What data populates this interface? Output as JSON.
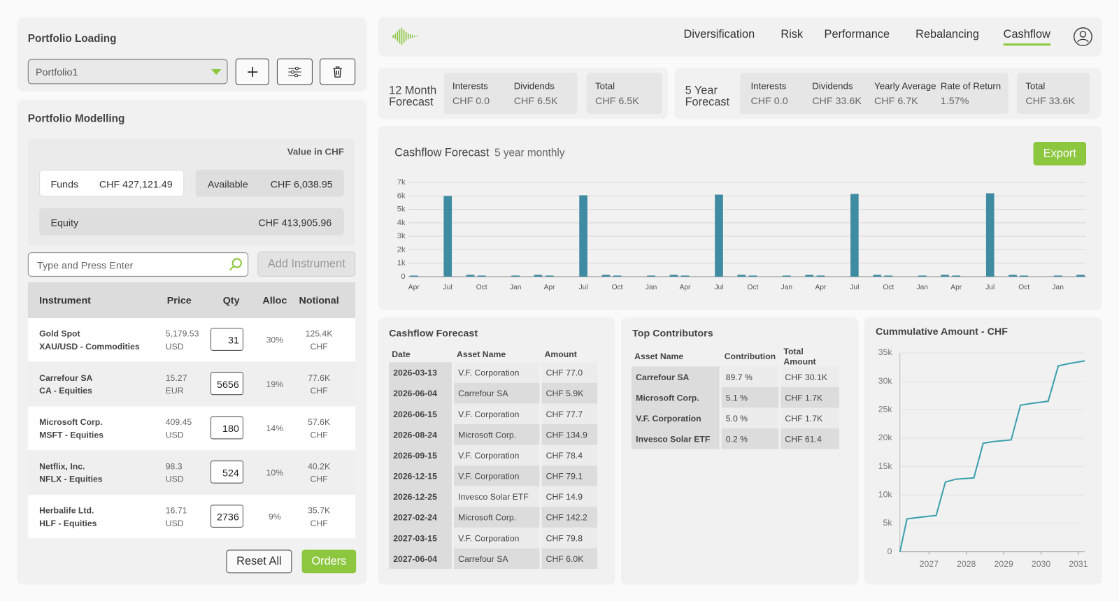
{
  "portfolio_loading": {
    "title": "Portfolio Loading",
    "selected": "Portfolio1"
  },
  "portfolio_modelling": {
    "title": "Portfolio Modelling",
    "value_caption": "Value in CHF",
    "funds": {
      "label": "Funds",
      "value": "CHF 427,121.49"
    },
    "available": {
      "label": "Available",
      "value": "CHF 6,038.95"
    },
    "equity": {
      "label": "Equity",
      "value": "CHF 413,905.96"
    },
    "search_placeholder": "Type and Press Enter",
    "add_button": "Add Instrument",
    "table": {
      "headers": [
        "Instrument",
        "Price",
        "Qty",
        "Alloc",
        "Notional"
      ],
      "rows": [
        {
          "name": "Gold Spot",
          "detail": "XAU/USD - Commodities",
          "price": "5,179.53",
          "currency": "USD",
          "qty": "31",
          "alloc": "30%",
          "notional": "125.4K",
          "notional_currency": "CHF"
        },
        {
          "name": "Carrefour SA",
          "detail": "CA - Equities",
          "price": "15.27",
          "currency": "EUR",
          "qty": "5656",
          "alloc": "19%",
          "notional": "77.6K",
          "notional_currency": "CHF"
        },
        {
          "name": "Microsoft Corp.",
          "detail": "MSFT - Equities",
          "price": "409.45",
          "currency": "USD",
          "qty": "180",
          "alloc": "14%",
          "notional": "57.6K",
          "notional_currency": "CHF"
        },
        {
          "name": "Netflix, Inc.",
          "detail": "NFLX - Equities",
          "price": "98.3",
          "currency": "USD",
          "qty": "524",
          "alloc": "10%",
          "notional": "40.2K",
          "notional_currency": "CHF"
        },
        {
          "name": "Herbalife Ltd.",
          "detail": "HLF - Equities",
          "price": "16.71",
          "currency": "USD",
          "qty": "2736",
          "alloc": "9%",
          "notional": "35.7K",
          "notional_currency": "CHF"
        }
      ]
    },
    "reset_button": "Reset All",
    "orders_button": "Orders"
  },
  "nav": {
    "items": [
      "Diversification",
      "Risk",
      "Performance",
      "Rebalancing",
      "Cashflow"
    ]
  },
  "forecast_12m": {
    "label": "12 Month Forecast",
    "fields": [
      {
        "label": "Interests",
        "value": "CHF 0.0"
      },
      {
        "label": "Dividends",
        "value": "CHF 6.5K"
      }
    ],
    "total": {
      "label": "Total",
      "value": "CHF 6.5K"
    }
  },
  "forecast_5y": {
    "label": "5 Year Forecast",
    "fields": [
      {
        "label": "Interests",
        "value": "CHF 0.0"
      },
      {
        "label": "Dividends",
        "value": "CHF 33.6K"
      },
      {
        "label": "Yearly Average",
        "value": "CHF 6.7K"
      },
      {
        "label": "Rate of Return",
        "value": "1.57%"
      }
    ],
    "total": {
      "label": "Total",
      "value": "CHF 33.6K"
    }
  },
  "export_button": "Export",
  "chart_data": [
    {
      "type": "bar",
      "title": "Cashflow Forecast",
      "subtitle": "5 year monthly",
      "categories": [
        "Apr",
        null,
        null,
        "Jul",
        null,
        null,
        "Oct",
        null,
        null,
        "Jan",
        null,
        null,
        "Apr",
        null,
        null,
        "Jul",
        null,
        null,
        "Oct",
        null,
        null,
        "Jan",
        null,
        null,
        "Apr",
        null,
        null,
        "Jul",
        null,
        null,
        "Oct",
        null,
        null,
        "Jan",
        null,
        null,
        "Apr",
        null,
        null,
        "Jul",
        null,
        null,
        "Oct",
        null,
        null,
        "Jan",
        null,
        null,
        "Apr",
        null,
        null,
        "Jul",
        null,
        null,
        "Oct",
        null,
        null,
        "Jan",
        null,
        null
      ],
      "values": [
        80,
        0,
        0,
        6000,
        0,
        140,
        80,
        0,
        0,
        80,
        0,
        140,
        80,
        0,
        0,
        6050,
        0,
        140,
        80,
        0,
        0,
        80,
        0,
        140,
        80,
        0,
        0,
        6100,
        0,
        140,
        80,
        0,
        0,
        80,
        0,
        140,
        80,
        0,
        0,
        6150,
        0,
        140,
        80,
        0,
        0,
        80,
        0,
        140,
        80,
        0,
        0,
        6200,
        0,
        140,
        80,
        0,
        0,
        80,
        0,
        140
      ],
      "color": "#3f8ba1",
      "ylim": [
        0,
        7000
      ],
      "yticks": [
        0,
        {
          "value": 1000,
          "label": "1k"
        },
        {
          "value": 2000,
          "label": "2k"
        },
        {
          "value": 3000,
          "label": "3k"
        },
        {
          "value": 4000,
          "label": "4k"
        },
        {
          "value": 5000,
          "label": "5k"
        },
        {
          "value": 6000,
          "label": "6k"
        },
        {
          "value": 7000,
          "label": "7k"
        }
      ],
      "grid": true
    },
    {
      "type": "line",
      "title": "Cummulative Amount - CHF",
      "x": [
        2026.22,
        2026.41,
        2026.77,
        2027.19,
        2027.44,
        2027.73,
        2028.2,
        2028.45,
        2028.72,
        2029.2,
        2029.45,
        2029.73,
        2030.19,
        2030.46,
        2030.73,
        2031.17
      ],
      "values": [
        0,
        5800,
        6100,
        6400,
        12300,
        12800,
        13000,
        19100,
        19400,
        19700,
        25800,
        26100,
        26500,
        32700,
        33100,
        33600
      ],
      "color": "#3aa0ae",
      "xlim": [
        2026.22,
        2031.17
      ],
      "xticks": [
        2027,
        2028,
        2029,
        2030,
        2031
      ],
      "ylim": [
        0,
        35000
      ],
      "yticks": [
        0,
        {
          "value": 5000,
          "label": "5k"
        },
        {
          "value": 10000,
          "label": "10k"
        },
        {
          "value": 15000,
          "label": "15k"
        },
        {
          "value": 20000,
          "label": "20k"
        },
        {
          "value": 25000,
          "label": "25k"
        },
        {
          "value": 30000,
          "label": "30k"
        },
        {
          "value": 35000,
          "label": "35k"
        }
      ],
      "grid": true
    }
  ],
  "cashflow_table": {
    "title": "Cashflow Forecast",
    "headers": [
      "Date",
      "Asset Name",
      "Amount"
    ],
    "rows": [
      [
        "2026-03-13",
        "V.F. Corporation",
        "CHF 77.0"
      ],
      [
        "2026-06-04",
        "Carrefour SA",
        "CHF 5.9K"
      ],
      [
        "2026-06-15",
        "V.F. Corporation",
        "CHF 77.7"
      ],
      [
        "2026-08-24",
        "Microsoft Corp.",
        "CHF 134.9"
      ],
      [
        "2026-09-15",
        "V.F. Corporation",
        "CHF 78.4"
      ],
      [
        "2026-12-15",
        "V.F. Corporation",
        "CHF 79.1"
      ],
      [
        "2026-12-25",
        "Invesco Solar ETF",
        "CHF 14.9"
      ],
      [
        "2027-02-24",
        "Microsoft Corp.",
        "CHF 142.2"
      ],
      [
        "2027-03-15",
        "V.F. Corporation",
        "CHF 79.8"
      ],
      [
        "2027-06-04",
        "Carrefour SA",
        "CHF 6.0K"
      ]
    ]
  },
  "top_contributors": {
    "title": "Top Contributors",
    "headers": [
      "Asset Name",
      "Contribution",
      "Total Amount"
    ],
    "rows": [
      [
        "Carrefour SA",
        "89.7 %",
        "CHF 30.1K"
      ],
      [
        "Microsoft Corp.",
        "5.1 %",
        "CHF 1.7K"
      ],
      [
        "V.F. Corporation",
        "5.0 %",
        "CHF 1.7K"
      ],
      [
        "Invesco Solar ETF",
        "0.2 %",
        "CHF 61.4"
      ]
    ]
  }
}
